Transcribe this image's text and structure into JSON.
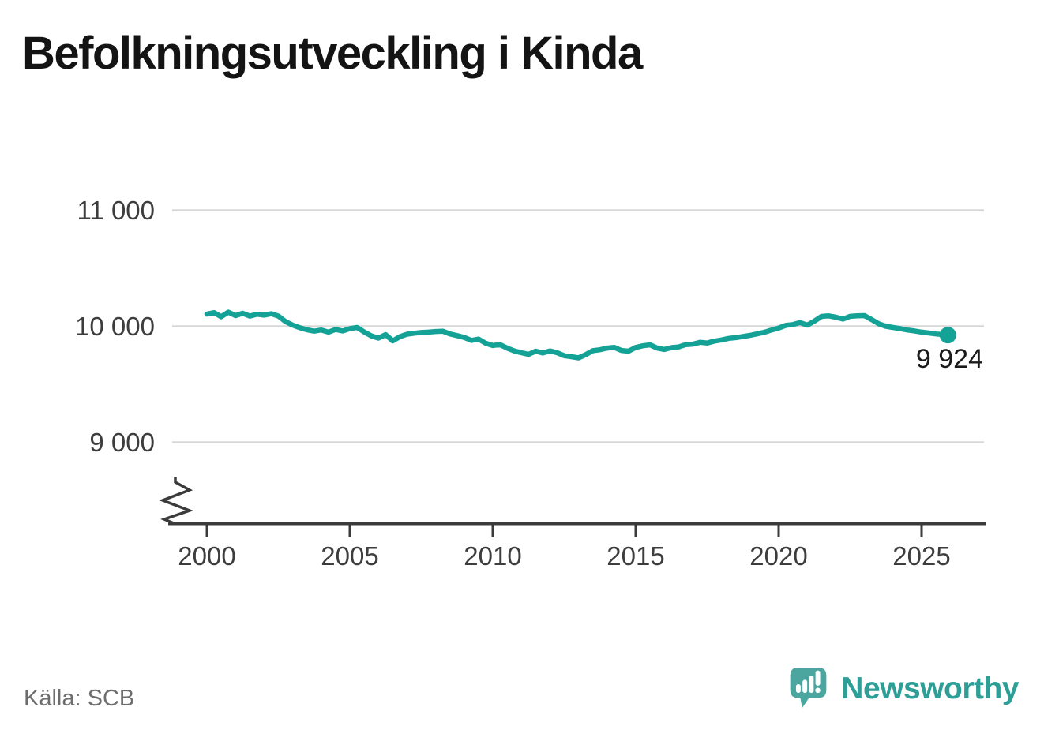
{
  "page": {
    "title": "Befolkningsutveckling i Kinda",
    "source": "Källa: SCB"
  },
  "brand": {
    "name": "Newsworthy",
    "text_color": "#2f9e96",
    "logo_color": "#4aa69f"
  },
  "chart_data": {
    "type": "line",
    "title": "Befolkningsutveckling i Kinda",
    "xlabel": "",
    "ylabel": "",
    "grid": "horizontal",
    "legend": "none",
    "axis_break_bottom_left": true,
    "x_ticks": [
      {
        "value": 2000,
        "label": "2000"
      },
      {
        "value": 2005,
        "label": "2005"
      },
      {
        "value": 2010,
        "label": "2010"
      },
      {
        "value": 2015,
        "label": "2015"
      },
      {
        "value": 2020,
        "label": "2020"
      },
      {
        "value": 2025,
        "label": "2025"
      }
    ],
    "y_ticks": [
      {
        "value": 9000,
        "label": "9 000"
      },
      {
        "value": 10000,
        "label": "10 000"
      },
      {
        "value": 11000,
        "label": "11 000"
      }
    ],
    "ylim_visible": [
      9000,
      11000
    ],
    "latest": {
      "x": 2025.92,
      "value": 9924,
      "label": "9 924"
    },
    "colors": {
      "line": "#14a296",
      "grid": "#d8d8d8",
      "axis": "#3b3b3b",
      "tick_label": "#3d3d3d",
      "value_label": "#1a1a1a"
    },
    "series": [
      {
        "points": [
          [
            2000.0,
            10105
          ],
          [
            2000.25,
            10118
          ],
          [
            2000.5,
            10082
          ],
          [
            2000.75,
            10122
          ],
          [
            2001.0,
            10092
          ],
          [
            2001.25,
            10112
          ],
          [
            2001.5,
            10088
          ],
          [
            2001.75,
            10104
          ],
          [
            2002.0,
            10096
          ],
          [
            2002.25,
            10108
          ],
          [
            2002.5,
            10088
          ],
          [
            2002.75,
            10040
          ],
          [
            2003.0,
            10010
          ],
          [
            2003.25,
            9988
          ],
          [
            2003.5,
            9970
          ],
          [
            2003.75,
            9958
          ],
          [
            2004.0,
            9968
          ],
          [
            2004.25,
            9950
          ],
          [
            2004.5,
            9972
          ],
          [
            2004.75,
            9960
          ],
          [
            2005.0,
            9980
          ],
          [
            2005.25,
            9990
          ],
          [
            2005.5,
            9952
          ],
          [
            2005.75,
            9918
          ],
          [
            2006.0,
            9898
          ],
          [
            2006.25,
            9928
          ],
          [
            2006.5,
            9874
          ],
          [
            2006.75,
            9910
          ],
          [
            2007.0,
            9932
          ],
          [
            2007.25,
            9940
          ],
          [
            2007.5,
            9946
          ],
          [
            2007.75,
            9950
          ],
          [
            2008.0,
            9955
          ],
          [
            2008.25,
            9958
          ],
          [
            2008.5,
            9934
          ],
          [
            2008.75,
            9920
          ],
          [
            2009.0,
            9904
          ],
          [
            2009.25,
            9878
          ],
          [
            2009.5,
            9890
          ],
          [
            2009.75,
            9854
          ],
          [
            2010.0,
            9834
          ],
          [
            2010.25,
            9842
          ],
          [
            2010.5,
            9812
          ],
          [
            2010.75,
            9788
          ],
          [
            2011.0,
            9772
          ],
          [
            2011.25,
            9758
          ],
          [
            2011.5,
            9786
          ],
          [
            2011.75,
            9770
          ],
          [
            2012.0,
            9788
          ],
          [
            2012.25,
            9772
          ],
          [
            2012.5,
            9746
          ],
          [
            2012.75,
            9738
          ],
          [
            2013.0,
            9728
          ],
          [
            2013.25,
            9756
          ],
          [
            2013.5,
            9790
          ],
          [
            2013.75,
            9798
          ],
          [
            2014.0,
            9812
          ],
          [
            2014.25,
            9818
          ],
          [
            2014.5,
            9792
          ],
          [
            2014.75,
            9786
          ],
          [
            2015.0,
            9818
          ],
          [
            2015.25,
            9832
          ],
          [
            2015.5,
            9840
          ],
          [
            2015.75,
            9812
          ],
          [
            2016.0,
            9800
          ],
          [
            2016.25,
            9816
          ],
          [
            2016.5,
            9822
          ],
          [
            2016.75,
            9842
          ],
          [
            2017.0,
            9846
          ],
          [
            2017.25,
            9862
          ],
          [
            2017.5,
            9856
          ],
          [
            2017.75,
            9872
          ],
          [
            2018.0,
            9882
          ],
          [
            2018.25,
            9896
          ],
          [
            2018.5,
            9902
          ],
          [
            2018.75,
            9912
          ],
          [
            2019.0,
            9922
          ],
          [
            2019.25,
            9935
          ],
          [
            2019.5,
            9948
          ],
          [
            2019.75,
            9968
          ],
          [
            2020.0,
            9985
          ],
          [
            2020.25,
            10008
          ],
          [
            2020.5,
            10015
          ],
          [
            2020.75,
            10032
          ],
          [
            2021.0,
            10010
          ],
          [
            2021.25,
            10045
          ],
          [
            2021.5,
            10085
          ],
          [
            2021.75,
            10090
          ],
          [
            2022.0,
            10078
          ],
          [
            2022.25,
            10062
          ],
          [
            2022.5,
            10086
          ],
          [
            2022.75,
            10090
          ],
          [
            2023.0,
            10092
          ],
          [
            2023.25,
            10058
          ],
          [
            2023.5,
            10022
          ],
          [
            2023.75,
            10000
          ],
          [
            2024.0,
            9990
          ],
          [
            2024.25,
            9980
          ],
          [
            2024.5,
            9968
          ],
          [
            2024.75,
            9960
          ],
          [
            2025.0,
            9950
          ],
          [
            2025.25,
            9942
          ],
          [
            2025.5,
            9934
          ],
          [
            2025.75,
            9928
          ],
          [
            2025.92,
            9924
          ]
        ]
      }
    ]
  }
}
